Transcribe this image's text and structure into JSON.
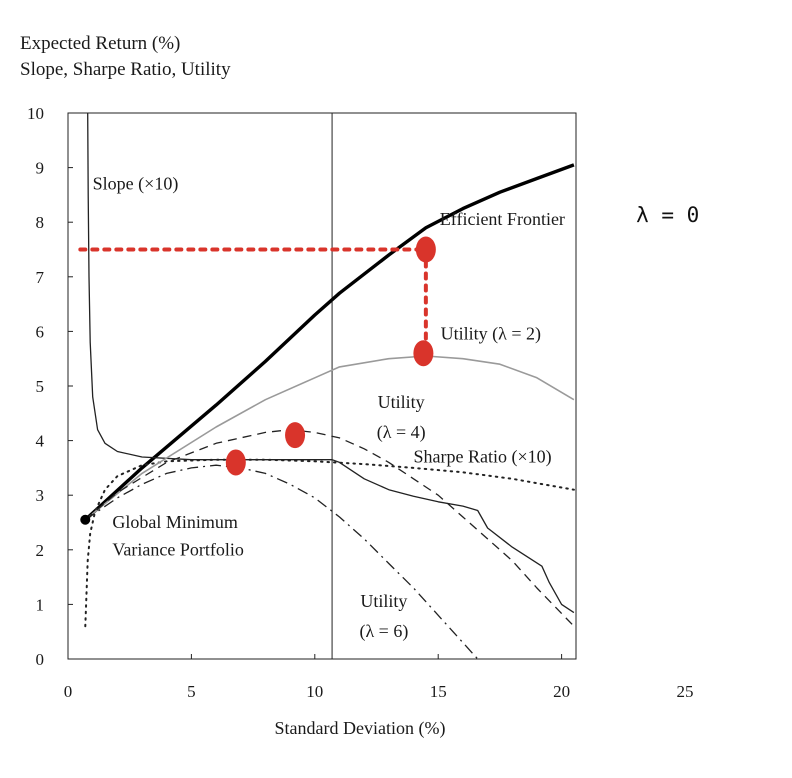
{
  "chart_data": {
    "type": "line",
    "ylabel_lines": [
      "Expected Return (%)",
      "Slope, Sharpe Ratio, Utility"
    ],
    "xlabel": "Standard Deviation (%)",
    "xlim": [
      0,
      25
    ],
    "ylim": [
      0,
      10
    ],
    "xticks": [
      "0",
      "5",
      "10",
      "15",
      "20",
      "25"
    ],
    "yticks": [
      "0",
      "1",
      "2",
      "3",
      "4",
      "5",
      "6",
      "7",
      "8",
      "9",
      "10"
    ],
    "grid": false,
    "vertical_line_x": 10.7,
    "series": [
      {
        "name": "Efficient Frontier",
        "style": "thick-solid",
        "x": [
          0.7,
          3,
          6,
          8,
          10,
          11,
          13,
          14.5,
          16,
          17.5,
          19,
          20.5
        ],
        "y": [
          2.55,
          3.5,
          4.65,
          5.45,
          6.3,
          6.7,
          7.4,
          7.9,
          8.25,
          8.55,
          8.8,
          9.05
        ]
      },
      {
        "name": "Slope (×10)",
        "style": "thin-solid",
        "x": [
          0.8,
          0.82,
          0.85,
          0.9,
          1.0,
          1.2,
          1.5,
          2,
          3,
          5,
          7,
          9,
          10.7,
          11,
          12,
          13,
          14,
          15,
          16,
          16.6,
          17,
          18,
          19.2,
          19.5,
          20,
          20.5
        ],
        "y": [
          10,
          8.5,
          7,
          5.8,
          4.8,
          4.2,
          3.95,
          3.8,
          3.7,
          3.65,
          3.65,
          3.65,
          3.65,
          3.6,
          3.3,
          3.1,
          2.98,
          2.88,
          2.8,
          2.72,
          2.4,
          2.05,
          1.7,
          1.4,
          1.0,
          0.85
        ]
      },
      {
        "name": "Sharpe Ratio (×10)",
        "style": "dotted",
        "x": [
          0.7,
          0.75,
          0.8,
          0.9,
          1.1,
          1.5,
          2,
          3,
          4,
          6,
          8,
          10,
          12,
          14,
          16,
          18,
          20.5
        ],
        "y": [
          0.6,
          1.2,
          1.8,
          2.3,
          2.7,
          3.1,
          3.35,
          3.55,
          3.62,
          3.65,
          3.65,
          3.62,
          3.57,
          3.5,
          3.42,
          3.3,
          3.1
        ]
      },
      {
        "name": "Utility (λ = 2)",
        "style": "gray-solid",
        "x": [
          0.7,
          3,
          6,
          8,
          10,
          11,
          13,
          14.5,
          16,
          17.5,
          19,
          20.5
        ],
        "y": [
          2.55,
          3.4,
          4.25,
          4.75,
          5.15,
          5.35,
          5.5,
          5.55,
          5.5,
          5.4,
          5.15,
          4.75
        ]
      },
      {
        "name": "Utility (λ = 4)",
        "style": "dashed",
        "x": [
          0.7,
          2,
          4,
          6,
          8,
          9,
          10,
          11,
          12,
          13,
          14,
          15,
          16,
          17,
          18,
          19,
          20.5
        ],
        "y": [
          2.55,
          3.05,
          3.6,
          3.95,
          4.15,
          4.2,
          4.15,
          4.05,
          3.85,
          3.6,
          3.3,
          3.0,
          2.6,
          2.2,
          1.8,
          1.3,
          0.6
        ]
      },
      {
        "name": "Utility (λ = 6)",
        "style": "dash-dot",
        "x": [
          0.7,
          2,
          3,
          4,
          5,
          6,
          7,
          8,
          9,
          10,
          11,
          12,
          13,
          14,
          15,
          16,
          16.6
        ],
        "y": [
          2.55,
          2.95,
          3.2,
          3.4,
          3.5,
          3.55,
          3.5,
          3.4,
          3.2,
          2.95,
          2.6,
          2.2,
          1.75,
          1.3,
          0.8,
          0.3,
          0
        ]
      }
    ],
    "gmv_point": {
      "x": 0.7,
      "y": 2.55
    },
    "annotations": [
      {
        "text": "Slope (×10)",
        "x": 1.0,
        "y": 8.6
      },
      {
        "text": "Efficient Frontier",
        "x": 17.6,
        "y": 7.95,
        "anchor": "middle"
      },
      {
        "text": "Utility (λ = 2)",
        "x": 15.1,
        "y": 5.85
      },
      {
        "text": "Utility",
        "x": 13.5,
        "y": 4.6,
        "anchor": "middle"
      },
      {
        "text": "(λ = 4)",
        "x": 13.5,
        "y": 4.05,
        "anchor": "middle"
      },
      {
        "text": "Sharpe Ratio (×10)",
        "x": 16.8,
        "y": 3.6,
        "anchor": "middle"
      },
      {
        "text": "Global Minimum",
        "x": 1.8,
        "y": 2.4
      },
      {
        "text": "Variance Portfolio",
        "x": 1.8,
        "y": 1.9
      },
      {
        "text": "Utility",
        "x": 12.8,
        "y": 0.95,
        "anchor": "middle"
      },
      {
        "text": "(λ = 6)",
        "x": 12.8,
        "y": 0.4,
        "anchor": "middle"
      }
    ],
    "handwritten_overlay": {
      "label": "λ = 0",
      "label_at": {
        "x": 24.3,
        "y": 8.0
      },
      "color": "#d9342b",
      "dots": [
        {
          "x": 14.5,
          "y": 7.5
        },
        {
          "x": 14.4,
          "y": 5.6
        },
        {
          "x": 9.2,
          "y": 4.1
        },
        {
          "x": 6.8,
          "y": 3.6
        }
      ],
      "guides": [
        {
          "x": [
            0.5,
            14.5
          ],
          "y": [
            7.5,
            7.5
          ]
        },
        {
          "x": [
            14.5,
            14.5
          ],
          "y": [
            7.5,
            5.6
          ]
        }
      ]
    }
  }
}
